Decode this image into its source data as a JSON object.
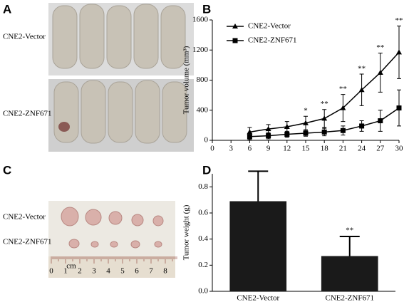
{
  "panel_labels": [
    "A",
    "B",
    "C",
    "D"
  ],
  "photo_labels": {
    "A": [
      "CNE2-Vector",
      "CNE2-ZNF671"
    ],
    "C": [
      "CNE2-Vector",
      "CNE2-ZNF671"
    ]
  },
  "ruler_labels": [
    "0",
    "1",
    "cm",
    "2",
    "3",
    "4",
    "5",
    "6",
    "7",
    "8"
  ],
  "chart_data": [
    {
      "type": "line",
      "ylabel": "Tumor volume (mm³)",
      "x": [
        6,
        9,
        12,
        15,
        18,
        21,
        24,
        27,
        30
      ],
      "xlim": [
        0,
        30
      ],
      "xticks": [
        0,
        3,
        6,
        9,
        12,
        15,
        18,
        21,
        24,
        27,
        30
      ],
      "ylim": [
        0,
        1600
      ],
      "yticks": [
        0,
        400,
        800,
        1200,
        1600
      ],
      "legend": "upper left",
      "significance": [
        null,
        null,
        null,
        "*",
        "**",
        "**",
        "**",
        "**",
        "**"
      ],
      "series": [
        {
          "name": "CNE2-Vector",
          "color": "#000000",
          "marker": "triangle",
          "values": [
            110,
            150,
            180,
            230,
            290,
            430,
            670,
            900,
            1170
          ],
          "errors": [
            60,
            60,
            70,
            90,
            120,
            180,
            210,
            260,
            350
          ]
        },
        {
          "name": "CNE2-ZNF671",
          "color": "#000000",
          "marker": "square",
          "values": [
            50,
            60,
            80,
            95,
            110,
            130,
            190,
            260,
            430
          ],
          "errors": [
            40,
            40,
            40,
            40,
            50,
            60,
            70,
            140,
            240
          ]
        }
      ]
    },
    {
      "type": "bar",
      "ylabel": "Tumor weight (g)",
      "categories": [
        "CNE2-Vector",
        "CNE2-ZNF671"
      ],
      "values": [
        0.69,
        0.27
      ],
      "errors": [
        0.23,
        0.15
      ],
      "significance": [
        null,
        "**"
      ],
      "color": "#1a1a1a",
      "ylim": [
        0,
        0.9
      ],
      "yticks": [
        {
          "value": 0,
          "label": "0.0"
        },
        0.2,
        0.4,
        0.6,
        0.8
      ]
    }
  ]
}
